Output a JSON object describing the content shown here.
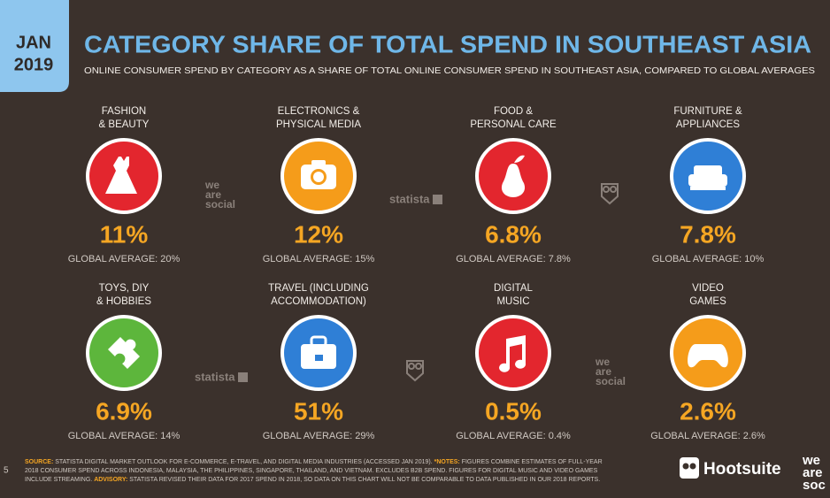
{
  "header": {
    "month": "JAN",
    "year": "2019",
    "title": "CATEGORY SHARE OF TOTAL SPEND IN SOUTHEAST ASIA",
    "subtitle": "ONLINE CONSUMER SPEND BY CATEGORY AS A SHARE OF TOTAL ONLINE CONSUMER SPEND IN SOUTHEAST ASIA, COMPARED TO GLOBAL AVERAGES"
  },
  "categories": [
    {
      "label": [
        "FASHION",
        "& BEAUTY"
      ],
      "color": "#e3262e",
      "value": "11%",
      "global_average": "GLOBAL AVERAGE: 20%"
    },
    {
      "label": [
        "ELECTRONICS &",
        "PHYSICAL MEDIA"
      ],
      "color": "#f59c1a",
      "value": "12%",
      "global_average": "GLOBAL AVERAGE: 15%"
    },
    {
      "label": [
        "FOOD &",
        "PERSONAL CARE"
      ],
      "color": "#e3262e",
      "value": "6.8%",
      "global_average": "GLOBAL AVERAGE: 7.8%"
    },
    {
      "label": [
        "FURNITURE &",
        "APPLIANCES"
      ],
      "color": "#2f7fd6",
      "value": "7.8%",
      "global_average": "GLOBAL AVERAGE: 10%"
    },
    {
      "label": [
        "TOYS, DIY",
        "& HOBBIES"
      ],
      "color": "#5db63c",
      "value": "6.9%",
      "global_average": "GLOBAL AVERAGE: 14%"
    },
    {
      "label": [
        "TRAVEL (INCLUDING",
        "ACCOMMODATION)"
      ],
      "color": "#2f7fd6",
      "value": "51%",
      "global_average": "GLOBAL AVERAGE: 29%"
    },
    {
      "label": [
        "DIGITAL",
        "MUSIC"
      ],
      "color": "#e3262e",
      "value": "0.5%",
      "global_average": "GLOBAL AVERAGE: 0.4%"
    },
    {
      "label": [
        "VIDEO",
        "GAMES"
      ],
      "color": "#f59c1a",
      "value": "2.6%",
      "global_average": "GLOBAL AVERAGE: 2.6%"
    }
  ],
  "watermarks": {
    "we_are_social": [
      "we",
      "are",
      "social"
    ],
    "statista": "statista"
  },
  "footer": {
    "page": "5",
    "lines": [
      [
        {
          "text": "SOURCE:",
          "color": "#f5a623"
        },
        {
          "text": " STATISTA DIGITAL MARKET OUTLOOK FOR E-COMMERCE, E-TRAVEL, AND DIGITAL MEDIA INDUSTRIES (ACCESSED JAN 2019). ",
          "color": "#cfc8c2"
        },
        {
          "text": "*NOTES:",
          "color": "#f5a623"
        },
        {
          "text": " FIGURES COMBINE ESTIMATES OF FULL-YEAR",
          "color": "#cfc8c2"
        }
      ],
      [
        {
          "text": "2018 CONSUMER SPEND ACROSS INDONESIA, MALAYSIA, THE PHILIPPINES, SINGAPORE, THAILAND, AND VIETNAM. EXCLUDES B2B SPEND. FIGURES FOR DIGITAL MUSIC AND VIDEO GAMES",
          "color": "#cfc8c2"
        }
      ],
      [
        {
          "text": "INCLUDE STREAMING. ",
          "color": "#cfc8c2"
        },
        {
          "text": "ADVISORY:",
          "color": "#f5a623"
        },
        {
          "text": " STATISTA REVISED THEIR DATA FOR 2017 SPEND IN 2018, SO DATA ON THIS CHART WILL NOT BE COMPARABLE TO DATA PUBLISHED IN OUR 2018 REPORTS.",
          "color": "#cfc8c2"
        }
      ]
    ],
    "brand": "Hootsuite",
    "brand2": [
      "we",
      "are",
      "soc"
    ]
  }
}
